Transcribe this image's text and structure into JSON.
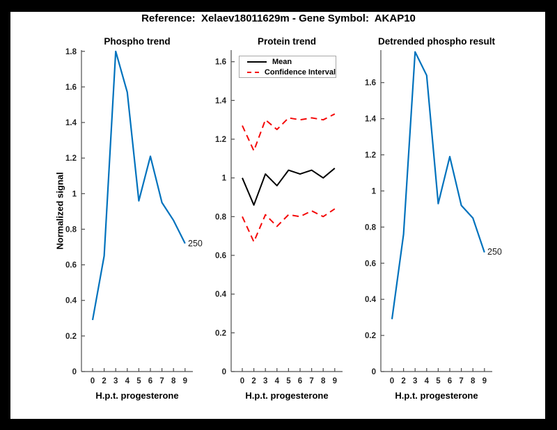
{
  "title": "Reference:  Xelaev18011629m - Gene Symbol:  AKAP10",
  "ylabel_shared": "Normalized signal",
  "legend": {
    "entries": [
      {
        "label": "Mean",
        "color": "#000000",
        "style": "solid"
      },
      {
        "label": "Confidence Interval",
        "color": "#f40808",
        "style": "dashed"
      }
    ]
  },
  "chart_data": [
    {
      "type": "line",
      "title": "Phospho trend",
      "xlabel": "H.p.t. progesterone",
      "ylabel": "Normalized signal",
      "categories": [
        "0",
        "2",
        "3",
        "4",
        "5",
        "6",
        "7",
        "8",
        "9"
      ],
      "ylim": [
        0,
        1.807
      ],
      "yticks": [
        0,
        0.2,
        0.4,
        0.6,
        0.8,
        1,
        1.2,
        1.4,
        1.6,
        1.8
      ],
      "grid": false,
      "series": [
        {
          "name": "phospho-signal",
          "color": "#0072BD",
          "dash": "",
          "width": 2.2,
          "values": [
            0.29,
            0.65,
            1.8,
            1.57,
            0.96,
            1.21,
            0.95,
            0.85,
            0.72
          ]
        }
      ],
      "annotation": "250"
    },
    {
      "type": "line",
      "title": "Protein trend",
      "xlabel": "H.p.t. progesterone",
      "ylabel": "",
      "categories": [
        "0",
        "2",
        "3",
        "4",
        "5",
        "6",
        "7",
        "8",
        "9"
      ],
      "ylim": [
        0,
        1.66
      ],
      "yticks": [
        0,
        0.2,
        0.4,
        0.6,
        0.8,
        1,
        1.2,
        1.4,
        1.6
      ],
      "grid": false,
      "legend_position": "top-left",
      "series": [
        {
          "name": "mean",
          "color": "#000000",
          "dash": "",
          "width": 2,
          "values": [
            1.0,
            0.86,
            1.02,
            0.96,
            1.04,
            1.02,
            1.04,
            1.0,
            1.05
          ]
        },
        {
          "name": "confidence-upper",
          "color": "#f40808",
          "dash": "9 6",
          "width": 2,
          "values": [
            1.27,
            1.14,
            1.3,
            1.25,
            1.31,
            1.3,
            1.31,
            1.3,
            1.33
          ]
        },
        {
          "name": "confidence-lower",
          "color": "#f40808",
          "dash": "9 6",
          "width": 2,
          "values": [
            0.8,
            0.67,
            0.81,
            0.75,
            0.81,
            0.8,
            0.83,
            0.8,
            0.84
          ]
        }
      ],
      "annotation": ""
    },
    {
      "type": "line",
      "title": "Detrended phospho result",
      "xlabel": "H.p.t. progesterone",
      "ylabel": "",
      "categories": [
        "0",
        "2",
        "3",
        "4",
        "5",
        "6",
        "7",
        "8",
        "9"
      ],
      "ylim": [
        0,
        1.78
      ],
      "yticks": [
        0,
        0.2,
        0.4,
        0.6,
        0.8,
        1,
        1.2,
        1.4,
        1.6
      ],
      "grid": false,
      "series": [
        {
          "name": "detrended-signal",
          "color": "#0072BD",
          "dash": "",
          "width": 2.2,
          "values": [
            0.29,
            0.76,
            1.77,
            1.64,
            0.93,
            1.19,
            0.92,
            0.85,
            0.66
          ]
        }
      ],
      "annotation": "250"
    }
  ]
}
